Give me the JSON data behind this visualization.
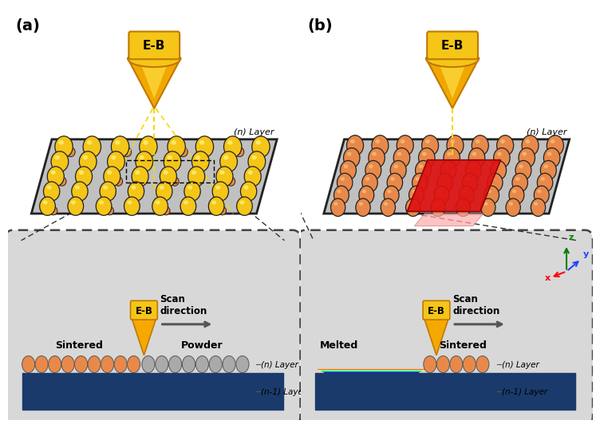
{
  "bg_color": "#ffffff",
  "inset_bg": "#d8d8d8",
  "label_a": "(a)",
  "label_b": "(b)",
  "eb_label": "E-B",
  "n_layer_label": "(n) Layer",
  "n1_layer_label": "(n-1) Layer",
  "scan_direction": "Scan\ndirection",
  "sintered_label": "Sintered",
  "powder_label": "Powder",
  "melted_label": "Melted",
  "sintered2_label": "Sintered",
  "beam_yellow": "#f5c800",
  "beam_orange": "#e8920a",
  "plate_color": "#c0c0c0",
  "plate_edge": "#222222",
  "powder_ball_color": "#aaaaaa",
  "sintered_ball_color": "#e8894a",
  "yellow_ball_color": "#f5c518",
  "base_layer_color": "#1a3a6b",
  "red_patch_color": "#dd1111",
  "label_fontsize": 14,
  "eb_fontsize": 11,
  "text_fontsize": 9
}
